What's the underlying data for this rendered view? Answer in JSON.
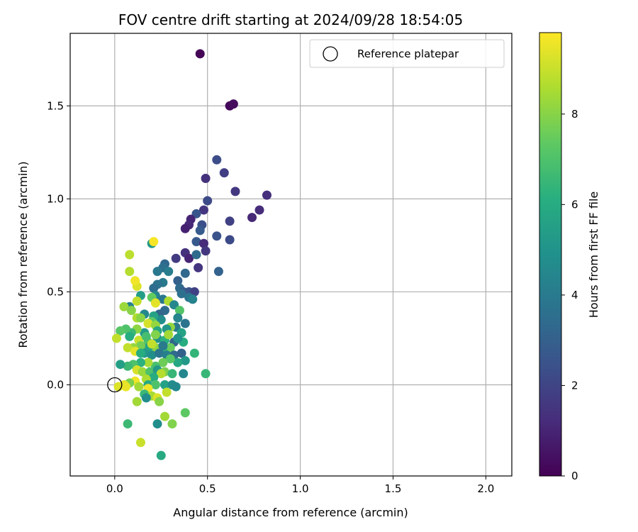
{
  "chart_data": {
    "type": "scatter",
    "title": "FOV centre drift starting at 2024/09/28 18:54:05",
    "xlabel": "Angular distance from reference (arcmin)",
    "ylabel": "Rotation from reference (arcmin)",
    "xlim": [
      -0.24,
      2.14
    ],
    "ylim": [
      -0.49,
      1.89
    ],
    "xticks": [
      0.0,
      0.5,
      1.0,
      1.5,
      2.0
    ],
    "xtick_labels": [
      "0.0",
      "0.5",
      "1.0",
      "1.5",
      "2.0"
    ],
    "yticks": [
      0.0,
      0.5,
      1.0,
      1.5
    ],
    "ytick_labels": [
      "0.0",
      "0.5",
      "1.0",
      "1.5"
    ],
    "grid": true,
    "legend": {
      "position": "top-right",
      "entries": [
        "Reference platepar"
      ]
    },
    "colorbar": {
      "label": "Hours from first FF file",
      "range": [
        0,
        9.8
      ],
      "ticks": [
        0,
        2,
        4,
        6,
        8
      ],
      "tick_labels": [
        "0",
        "2",
        "4",
        "6",
        "8"
      ],
      "colormap": "viridis"
    },
    "reference": {
      "x": 0.0,
      "y": 0.0
    },
    "points": [
      [
        0.46,
        1.78,
        0.1
      ],
      [
        0.62,
        1.5,
        0.2
      ],
      [
        0.64,
        1.51,
        0.3
      ],
      [
        0.55,
        1.21,
        2.3
      ],
      [
        0.59,
        1.14,
        1.8
      ],
      [
        0.49,
        1.11,
        1.4
      ],
      [
        0.65,
        1.04,
        1.6
      ],
      [
        0.82,
        1.02,
        1.3
      ],
      [
        0.78,
        0.94,
        1.2
      ],
      [
        0.74,
        0.9,
        1.1
      ],
      [
        0.5,
        0.99,
        2.2
      ],
      [
        0.48,
        0.94,
        1.5
      ],
      [
        0.44,
        0.92,
        2.6
      ],
      [
        0.41,
        0.89,
        1.0
      ],
      [
        0.4,
        0.86,
        1.1
      ],
      [
        0.38,
        0.84,
        0.9
      ],
      [
        0.47,
        0.86,
        2.4
      ],
      [
        0.46,
        0.83,
        2.8
      ],
      [
        0.62,
        0.88,
        1.9
      ],
      [
        0.55,
        0.8,
        2.5
      ],
      [
        0.62,
        0.78,
        2.2
      ],
      [
        0.44,
        0.77,
        2.7
      ],
      [
        0.48,
        0.76,
        1.2
      ],
      [
        0.49,
        0.72,
        1.6
      ],
      [
        0.38,
        0.71,
        1.4
      ],
      [
        0.4,
        0.68,
        1.0
      ],
      [
        0.33,
        0.68,
        1.7
      ],
      [
        0.45,
        0.63,
        1.5
      ],
      [
        0.56,
        0.61,
        3.1
      ],
      [
        0.44,
        0.7,
        3.4
      ],
      [
        0.2,
        0.76,
        5.2
      ],
      [
        0.27,
        0.65,
        3.3
      ],
      [
        0.26,
        0.63,
        3.6
      ],
      [
        0.23,
        0.61,
        3.9
      ],
      [
        0.29,
        0.61,
        4.1
      ],
      [
        0.38,
        0.6,
        3.3
      ],
      [
        0.34,
        0.56,
        3.0
      ],
      [
        0.35,
        0.52,
        3.4
      ],
      [
        0.37,
        0.5,
        2.8
      ],
      [
        0.4,
        0.5,
        2.6
      ],
      [
        0.43,
        0.5,
        1.9
      ],
      [
        0.36,
        0.49,
        3.6
      ],
      [
        0.4,
        0.47,
        3.8
      ],
      [
        0.42,
        0.46,
        4.3
      ],
      [
        0.26,
        0.55,
        4.0
      ],
      [
        0.23,
        0.54,
        3.7
      ],
      [
        0.21,
        0.52,
        3.5
      ],
      [
        0.14,
        0.48,
        5.4
      ],
      [
        0.22,
        0.48,
        4.4
      ],
      [
        0.26,
        0.46,
        3.9
      ],
      [
        0.29,
        0.45,
        8.6
      ],
      [
        0.32,
        0.43,
        4.5
      ],
      [
        0.35,
        0.4,
        7.1
      ],
      [
        0.27,
        0.4,
        3.4
      ],
      [
        0.24,
        0.38,
        3.2
      ],
      [
        0.34,
        0.36,
        4.4
      ],
      [
        0.38,
        0.33,
        3.7
      ],
      [
        0.33,
        0.31,
        4.0
      ],
      [
        0.3,
        0.31,
        8.2
      ],
      [
        0.28,
        0.3,
        5.1
      ],
      [
        0.25,
        0.35,
        4.8
      ],
      [
        0.21,
        0.37,
        5.6
      ],
      [
        0.16,
        0.38,
        4.6
      ],
      [
        0.12,
        0.36,
        8.6
      ],
      [
        0.08,
        0.42,
        4.3
      ],
      [
        0.05,
        0.42,
        8.3
      ],
      [
        0.09,
        0.4,
        8.0
      ],
      [
        0.12,
        0.45,
        8.9
      ],
      [
        0.12,
        0.53,
        9.3
      ],
      [
        0.11,
        0.56,
        9.6
      ],
      [
        0.08,
        0.61,
        8.7
      ],
      [
        0.08,
        0.7,
        8.8
      ],
      [
        0.21,
        0.77,
        9.7
      ],
      [
        0.2,
        0.47,
        7.4
      ],
      [
        0.22,
        0.44,
        9.4
      ],
      [
        0.14,
        0.36,
        8.0
      ],
      [
        0.2,
        0.34,
        7.3
      ],
      [
        0.18,
        0.33,
        9.2
      ],
      [
        0.22,
        0.32,
        8.2
      ],
      [
        0.23,
        0.29,
        5.8
      ],
      [
        0.16,
        0.28,
        5.3
      ],
      [
        0.12,
        0.3,
        8.1
      ],
      [
        0.09,
        0.28,
        6.6
      ],
      [
        0.06,
        0.3,
        7.0
      ],
      [
        0.03,
        0.29,
        7.2
      ],
      [
        0.01,
        0.25,
        8.9
      ],
      [
        0.08,
        0.26,
        6.1
      ],
      [
        0.13,
        0.24,
        9.0
      ],
      [
        0.18,
        0.23,
        7.0
      ],
      [
        0.23,
        0.25,
        5.0
      ],
      [
        0.27,
        0.24,
        6.2
      ],
      [
        0.32,
        0.23,
        3.2
      ],
      [
        0.37,
        0.23,
        6.1
      ],
      [
        0.3,
        0.2,
        7.5
      ],
      [
        0.26,
        0.19,
        6.6
      ],
      [
        0.22,
        0.2,
        8.1
      ],
      [
        0.18,
        0.2,
        5.6
      ],
      [
        0.14,
        0.21,
        7.7
      ],
      [
        0.1,
        0.2,
        8.2
      ],
      [
        0.07,
        0.2,
        8.9
      ],
      [
        0.11,
        0.18,
        9.4
      ],
      [
        0.16,
        0.17,
        5.2
      ],
      [
        0.2,
        0.16,
        4.8
      ],
      [
        0.24,
        0.17,
        3.8
      ],
      [
        0.28,
        0.16,
        4.2
      ],
      [
        0.32,
        0.16,
        3.4
      ],
      [
        0.36,
        0.17,
        3.0
      ],
      [
        0.43,
        0.17,
        6.4
      ],
      [
        0.38,
        0.13,
        5.2
      ],
      [
        0.34,
        0.12,
        5.8
      ],
      [
        0.3,
        0.14,
        7.2
      ],
      [
        0.26,
        0.12,
        7.6
      ],
      [
        0.22,
        0.1,
        6.9
      ],
      [
        0.18,
        0.12,
        8.5
      ],
      [
        0.14,
        0.12,
        6.2
      ],
      [
        0.1,
        0.11,
        7.0
      ],
      [
        0.07,
        0.1,
        6.6
      ],
      [
        0.03,
        0.11,
        5.5
      ],
      [
        0.12,
        0.08,
        9.2
      ],
      [
        0.15,
        0.07,
        8.3
      ],
      [
        0.19,
        0.07,
        7.0
      ],
      [
        0.23,
        0.08,
        5.3
      ],
      [
        0.27,
        0.07,
        7.8
      ],
      [
        0.31,
        0.06,
        6.5
      ],
      [
        0.37,
        0.06,
        4.5
      ],
      [
        0.49,
        0.06,
        6.5
      ],
      [
        0.25,
        0.06,
        8.7
      ],
      [
        0.21,
        0.04,
        6.0
      ],
      [
        0.17,
        0.03,
        8.6
      ],
      [
        0.11,
        0.02,
        9.6
      ],
      [
        0.08,
        0.01,
        7.8
      ],
      [
        0.05,
        0.0,
        9.4
      ],
      [
        0.18,
        0.0,
        5.9
      ],
      [
        0.22,
        0.0,
        7.0
      ],
      [
        0.27,
        0.0,
        5.6
      ],
      [
        0.31,
        0.0,
        4.7
      ],
      [
        0.33,
        -0.01,
        4.6
      ],
      [
        0.02,
        -0.01,
        9.3
      ],
      [
        0.06,
        -0.01,
        9.5
      ],
      [
        0.13,
        -0.01,
        8.4
      ],
      [
        0.18,
        -0.02,
        9.6
      ],
      [
        0.28,
        -0.04,
        8.9
      ],
      [
        0.16,
        -0.05,
        6.6
      ],
      [
        0.2,
        -0.06,
        8.5
      ],
      [
        0.17,
        -0.07,
        4.8
      ],
      [
        0.23,
        -0.07,
        9.3
      ],
      [
        0.24,
        -0.09,
        8.0
      ],
      [
        0.12,
        -0.09,
        8.4
      ],
      [
        0.27,
        -0.17,
        8.4
      ],
      [
        0.38,
        -0.15,
        7.3
      ],
      [
        0.07,
        -0.21,
        6.6
      ],
      [
        0.23,
        -0.21,
        4.8
      ],
      [
        0.31,
        -0.21,
        7.9
      ],
      [
        0.14,
        -0.31,
        9.0
      ],
      [
        0.25,
        -0.38,
        5.9
      ],
      [
        0.36,
        0.28,
        5.6
      ],
      [
        0.34,
        0.25,
        4.9
      ],
      [
        0.22,
        0.27,
        7.9
      ],
      [
        0.17,
        0.26,
        6.8
      ],
      [
        0.29,
        0.27,
        8.4
      ],
      [
        0.26,
        0.21,
        4.0
      ],
      [
        0.2,
        0.22,
        8.9
      ],
      [
        0.14,
        0.17,
        6.1
      ]
    ]
  }
}
